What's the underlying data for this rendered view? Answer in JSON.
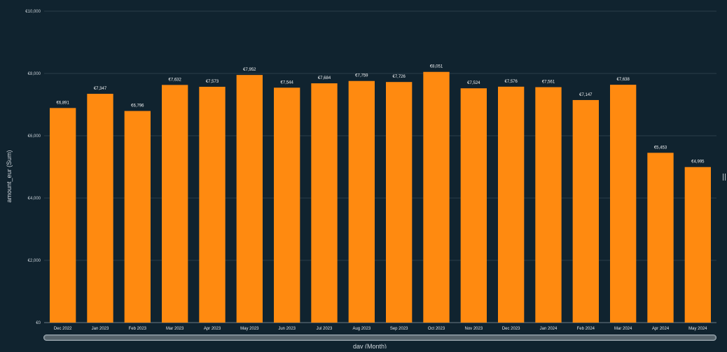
{
  "chart_data": {
    "type": "bar",
    "xlabel": "day (Month)",
    "ylabel": "amount_eur (Sum)",
    "ylim": [
      0,
      10000
    ],
    "yticks": [
      0,
      2000,
      4000,
      6000,
      8000,
      10000
    ],
    "ytick_labels": [
      "€0",
      "€2,000",
      "€4,000",
      "€6,000",
      "€8,000",
      "€10,000"
    ],
    "grid": true,
    "bar_color": "#ff8a10",
    "categories": [
      "Dec 2022",
      "Jan 2023",
      "Feb 2023",
      "Mar 2023",
      "Apr 2023",
      "May 2023",
      "Jun 2023",
      "Jul 2023",
      "Aug 2023",
      "Sep 2023",
      "Oct 2023",
      "Nov 2023",
      "Dec 2023",
      "Jan 2024",
      "Feb 2024",
      "Mar 2024",
      "Apr 2024",
      "May 2024"
    ],
    "values": [
      6891,
      7347,
      6796,
      7632,
      7573,
      7952,
      7544,
      7684,
      7759,
      7726,
      8051,
      7524,
      7576,
      7561,
      7147,
      7638,
      5453,
      4995
    ],
    "data_labels": [
      "€6,891",
      "€7,347",
      "€6,796",
      "€7,632",
      "€7,573",
      "€7,952",
      "€7,544",
      "€7,684",
      "€7,759",
      "€7,726",
      "€8,051",
      "€7,524",
      "€7,576",
      "€7,561",
      "€7,147",
      "€7,638",
      "€5,453",
      "€4,995"
    ]
  },
  "colors": {
    "background": "#10232f",
    "grid": "#2a3c48",
    "bar": "#ff8a10"
  }
}
